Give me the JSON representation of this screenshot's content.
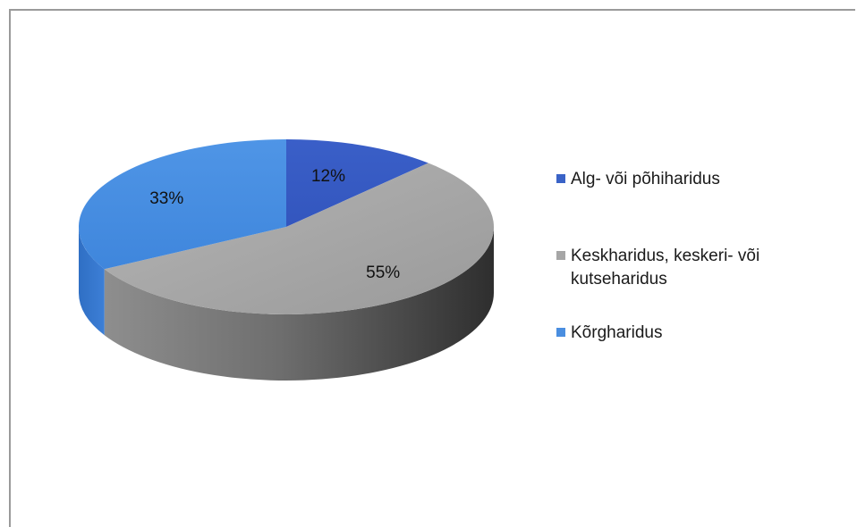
{
  "chart_data": {
    "type": "pie",
    "slices": [
      {
        "label": "Alg- või põhiharidus",
        "value": 12,
        "display": "12%",
        "color": "#3a63c7"
      },
      {
        "label": "Keskharidus, keskeri- või kutseharidus",
        "value": 55,
        "display": "55%",
        "color": "#a6a6a6"
      },
      {
        "label": "Kõrgharidus",
        "value": 33,
        "display": "33%",
        "color": "#4a8ee0"
      }
    ],
    "legend_position": "right",
    "style": "3d"
  }
}
